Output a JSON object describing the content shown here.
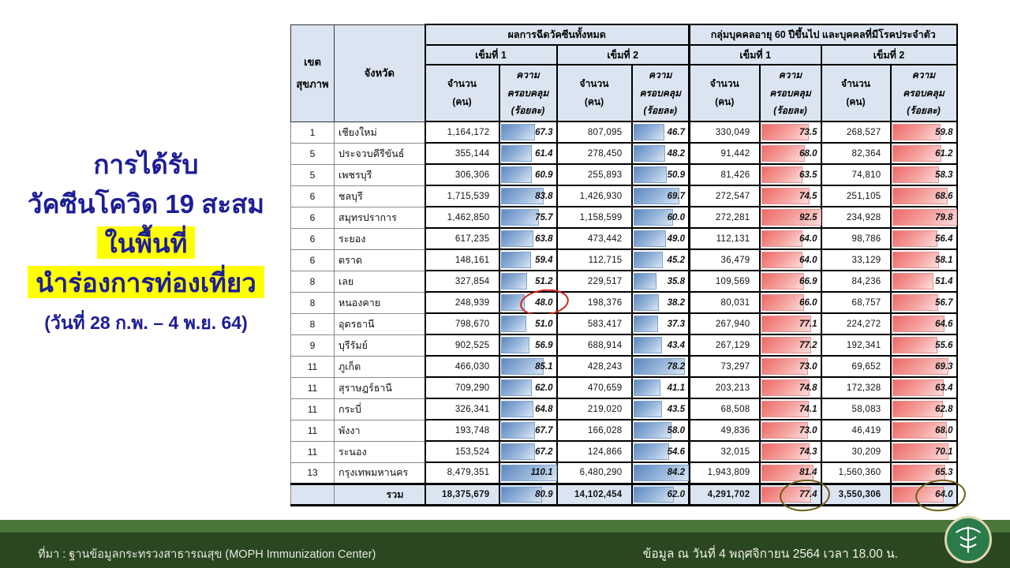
{
  "title": {
    "line1": "การได้รับ",
    "line2": "วัคซีนโควิด 19 สะสม",
    "line3_highlight": "ในพื้นที่",
    "line4_highlight": "นำร่องการท่องเที่ยว",
    "date_range": "(วันที่ 28 ก.พ. – 4 พ.ย. 64)"
  },
  "table": {
    "headers": {
      "region": "เขต\nสุขภาพ",
      "province": "จังหวัด",
      "group_all": "ผลการฉีดวัคซีนทั้งหมด",
      "group_60": "กลุ่มบุคคลอายุ 60 ปีขึ้นไป และบุคคลที่มีโรคประจำตัว",
      "dose1": "เข็มที่ 1",
      "dose2": "เข็มที่ 2",
      "count": "จำนวน\n(คน)",
      "coverage": "ความ\nครอบคลุม\n(ร้อยละ)"
    },
    "rows": [
      {
        "region": "1",
        "province": "เชียงใหม่",
        "a1": "1,164,172",
        "a1p": "67.3",
        "a2": "807,095",
        "a2p": "46.7",
        "b1": "330,049",
        "b1p": "73.5",
        "b2": "268,527",
        "b2p": "59.8"
      },
      {
        "region": "5",
        "province": "ประจวบคีรีขันธ์",
        "a1": "355,144",
        "a1p": "61.4",
        "a2": "278,450",
        "a2p": "48.2",
        "b1": "91,442",
        "b1p": "68.0",
        "b2": "82,364",
        "b2p": "61.2"
      },
      {
        "region": "5",
        "province": "เพชรบุรี",
        "a1": "306,306",
        "a1p": "60.9",
        "a2": "255,893",
        "a2p": "50.9",
        "b1": "81,426",
        "b1p": "63.5",
        "b2": "74,810",
        "b2p": "58.3"
      },
      {
        "region": "6",
        "province": "ชลบุรี",
        "a1": "1,715,539",
        "a1p": "83.8",
        "a2": "1,426,930",
        "a2p": "69.7",
        "b1": "272,547",
        "b1p": "74.5",
        "b2": "251,105",
        "b2p": "68.6"
      },
      {
        "region": "6",
        "province": "สมุทรปราการ",
        "a1": "1,462,850",
        "a1p": "75.7",
        "a2": "1,158,599",
        "a2p": "60.0",
        "b1": "272,281",
        "b1p": "92.5",
        "b2": "234,928",
        "b2p": "79.8"
      },
      {
        "region": "6",
        "province": "ระยอง",
        "a1": "617,235",
        "a1p": "63.8",
        "a2": "473,442",
        "a2p": "49.0",
        "b1": "112,131",
        "b1p": "64.0",
        "b2": "98,786",
        "b2p": "56.4"
      },
      {
        "region": "6",
        "province": "ตราด",
        "a1": "148,161",
        "a1p": "59.4",
        "a2": "112,715",
        "a2p": "45.2",
        "b1": "36,479",
        "b1p": "64.0",
        "b2": "33,129",
        "b2p": "58.1"
      },
      {
        "region": "8",
        "province": "เลย",
        "a1": "327,854",
        "a1p": "51.2",
        "a2": "229,517",
        "a2p": "35.8",
        "b1": "109,569",
        "b1p": "66.9",
        "b2": "84,236",
        "b2p": "51.4"
      },
      {
        "region": "8",
        "province": "หนองคาย",
        "a1": "248,939",
        "a1p": "48.0",
        "a2": "198,376",
        "a2p": "38.2",
        "b1": "80,031",
        "b1p": "66.0",
        "b2": "68,757",
        "b2p": "56.7",
        "circles": {
          "a1p": "red"
        }
      },
      {
        "region": "8",
        "province": "อุดรธานี",
        "a1": "798,670",
        "a1p": "51.0",
        "a2": "583,417",
        "a2p": "37.3",
        "b1": "267,940",
        "b1p": "77.1",
        "b2": "224,272",
        "b2p": "64.6"
      },
      {
        "region": "9",
        "province": "บุรีรัมย์",
        "a1": "902,525",
        "a1p": "56.9",
        "a2": "688,914",
        "a2p": "43.4",
        "b1": "267,129",
        "b1p": "77.2",
        "b2": "192,341",
        "b2p": "55.6"
      },
      {
        "region": "11",
        "province": "ภูเก็ต",
        "a1": "466,030",
        "a1p": "85.1",
        "a2": "428,243",
        "a2p": "78.2",
        "b1": "73,297",
        "b1p": "73.0",
        "b2": "69,652",
        "b2p": "69.3"
      },
      {
        "region": "11",
        "province": "สุราษฎร์ธานี",
        "a1": "709,290",
        "a1p": "62.0",
        "a2": "470,659",
        "a2p": "41.1",
        "b1": "203,213",
        "b1p": "74.8",
        "b2": "172,328",
        "b2p": "63.4"
      },
      {
        "region": "11",
        "province": "กระบี่",
        "a1": "326,341",
        "a1p": "64.8",
        "a2": "219,020",
        "a2p": "43.5",
        "b1": "68,508",
        "b1p": "74.1",
        "b2": "58,083",
        "b2p": "62.8"
      },
      {
        "region": "11",
        "province": "พังงา",
        "a1": "193,748",
        "a1p": "67.7",
        "a2": "166,028",
        "a2p": "58.0",
        "b1": "49,836",
        "b1p": "73.0",
        "b2": "46,419",
        "b2p": "68.0"
      },
      {
        "region": "11",
        "province": "ระนอง",
        "a1": "153,524",
        "a1p": "67.2",
        "a2": "124,866",
        "a2p": "54.6",
        "b1": "32,015",
        "b1p": "74.3",
        "b2": "30,209",
        "b2p": "70.1"
      },
      {
        "region": "13",
        "province": "กรุงเทพมหานคร",
        "a1": "8,479,351",
        "a1p": "110.1",
        "a2": "6,480,290",
        "a2p": "84.2",
        "b1": "1,943,809",
        "b1p": "81.4",
        "b2": "1,560,360",
        "b2p": "65.3"
      }
    ],
    "total": {
      "region": "",
      "province": "รวม",
      "a1": "18,375,679",
      "a1p": "80.9",
      "a2": "14,102,454",
      "a2p": "62.0",
      "b1": "4,291,702",
      "b1p": "77.4",
      "b2": "3,550,306",
      "b2p": "64.0",
      "circles": {
        "b1p": "olive",
        "b2p": "olive"
      }
    }
  },
  "footer": {
    "source": "ที่มา : ฐานข้อมูลกระทรวงสาธารณสุข (MOPH  Immunization Center)",
    "as_of": "ข้อมูล ณ วันที่ 4 พฤศจิกายน 2564 เวลา 18.00 น.",
    "logo": "moph-seal"
  },
  "colors": {
    "title_blue": "#1d1d96",
    "highlight_yellow": "#ffff00",
    "bar_blue": "#5d88be",
    "bar_red": "#ed6a66",
    "header_bg": "#dbe5f1",
    "footer_green_dark": "#2b4722",
    "footer_green_light": "#4a7639",
    "circle_red": "#cf2318",
    "circle_olive": "#6e5e14"
  }
}
